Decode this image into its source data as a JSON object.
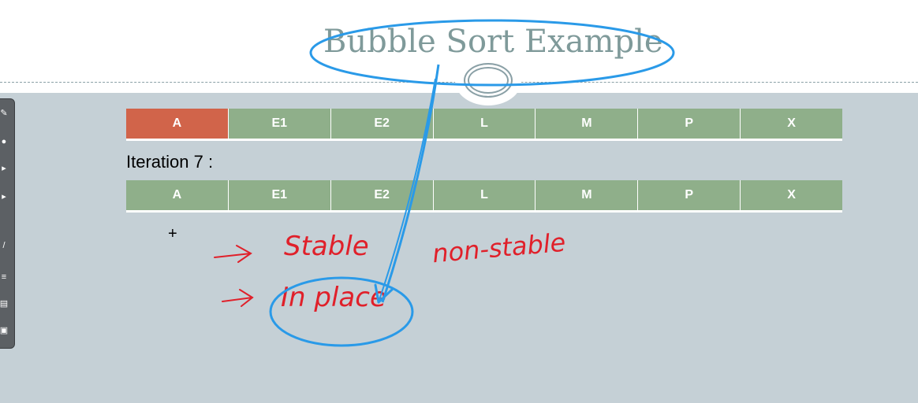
{
  "slide": {
    "title": "Bubble Sort Example",
    "iteration_label": "Iteration 7 :"
  },
  "rows": {
    "before": [
      "A",
      "E1",
      "E2",
      "L",
      "M",
      "P",
      "X"
    ],
    "after": [
      "A",
      "E1",
      "E2",
      "L",
      "M",
      "P",
      "X"
    ]
  },
  "annotations": {
    "stable": "Stable",
    "non_stable": "non-stable",
    "in_place": "In place"
  },
  "colors": {
    "cell": "#8faf8a",
    "highlight": "#d1644a",
    "ink_red": "#e0202a",
    "ink_blue": "#2a9ae8",
    "background": "#c5d0d6"
  }
}
